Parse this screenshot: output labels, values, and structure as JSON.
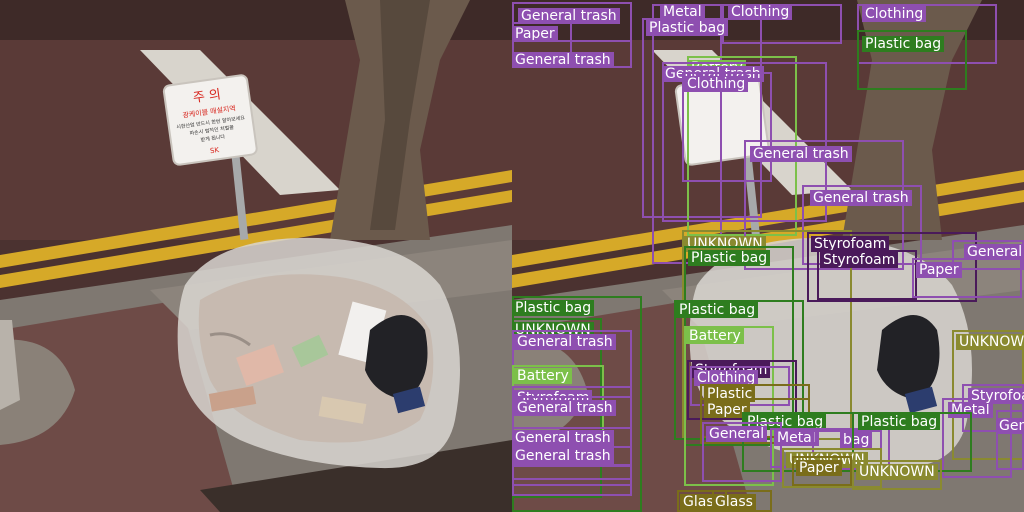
{
  "sign": {
    "heading": "주 의",
    "line1": "광케이블 매설지역",
    "line2": "시한산업 반드시 한번 알아보세요",
    "line3": "파손시 법적인 처벌을",
    "line4": "받게 됩니다",
    "brand": "SK"
  },
  "colors": {
    "purple": "#8e4fb0",
    "green": "#2e7d1f",
    "olive": "#7a6d1a",
    "lime": "#7cc04a",
    "gray": "#9a9088",
    "darkpurple": "#4a1a5a",
    "khaki": "#8a8a30",
    "road": "#5a3c38",
    "curb": "#8c847c",
    "yellowline": "#d6a928"
  },
  "detections": [
    {
      "label": "General trash",
      "color": "purple"
    },
    {
      "label": "Paper",
      "color": "purple"
    },
    {
      "label": "General trash",
      "color": "purple"
    },
    {
      "label": "Metal",
      "color": "purple"
    },
    {
      "label": "Clothing",
      "color": "purple"
    },
    {
      "label": "Clothing",
      "color": "purple"
    },
    {
      "label": "Plastic bag",
      "color": "purple"
    },
    {
      "label": "Plastic bag",
      "color": "green"
    },
    {
      "label": "Battery",
      "color": "lime"
    },
    {
      "label": "General trash",
      "color": "purple"
    },
    {
      "label": "Clothing",
      "color": "purple"
    },
    {
      "label": "General trash",
      "color": "purple"
    },
    {
      "label": "General trash",
      "color": "purple"
    },
    {
      "label": "UNKNOWN",
      "color": "khaki"
    },
    {
      "label": "Plastic bag",
      "color": "green"
    },
    {
      "label": "Styrofoam",
      "color": "darkpurple"
    },
    {
      "label": "Styrofoam",
      "color": "darkpurple"
    },
    {
      "label": "General",
      "color": "purple"
    },
    {
      "label": "Paper",
      "color": "purple"
    },
    {
      "label": "Plastic bag",
      "color": "green"
    },
    {
      "label": "UNKNOWN",
      "color": "green"
    },
    {
      "label": "General trash",
      "color": "purple"
    },
    {
      "label": "Battery",
      "color": "lime"
    },
    {
      "label": "Plastic bag",
      "color": "green"
    },
    {
      "label": "Battery",
      "color": "lime"
    },
    {
      "label": "UNKNOWN",
      "color": "khaki"
    },
    {
      "label": "Styrofoam",
      "color": "darkpurple"
    },
    {
      "label": "Clothing",
      "color": "purple"
    },
    {
      "label": "Plastic",
      "color": "olive"
    },
    {
      "label": "Styrofoam",
      "color": "purple"
    },
    {
      "label": "General trash",
      "color": "purple"
    },
    {
      "label": "Metal",
      "color": "purple"
    },
    {
      "label": "Styrofoam",
      "color": "purple"
    },
    {
      "label": "Paper",
      "color": "olive"
    },
    {
      "label": "Plastic bag",
      "color": "green"
    },
    {
      "label": "General",
      "color": "purple"
    },
    {
      "label": "Metal",
      "color": "purple"
    },
    {
      "label": "bag",
      "color": "purple"
    },
    {
      "label": "Plastic bag",
      "color": "green"
    },
    {
      "label": "General trash",
      "color": "purple"
    },
    {
      "label": "UNKNOWN",
      "color": "khaki"
    },
    {
      "label": "Paper",
      "color": "olive"
    },
    {
      "label": "UNKNOWN",
      "color": "khaki"
    },
    {
      "label": "General trash",
      "color": "purple"
    },
    {
      "label": "Glass",
      "color": "olive"
    },
    {
      "label": "Glass",
      "color": "olive"
    },
    {
      "label": "Gen",
      "color": "purple"
    }
  ]
}
